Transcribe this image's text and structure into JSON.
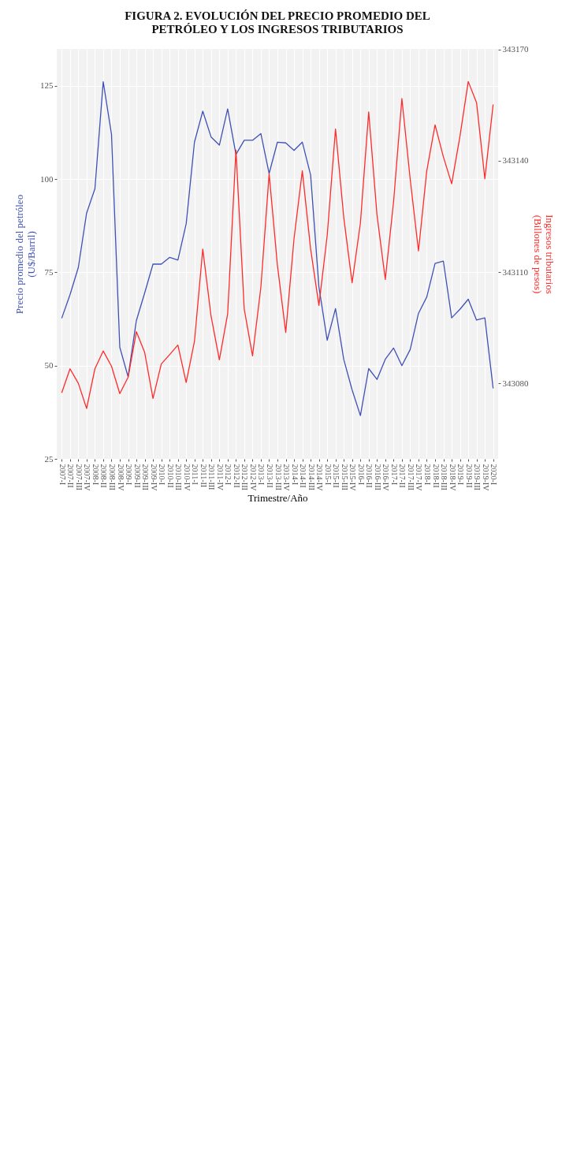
{
  "chart_data": {
    "type": "line",
    "title": "FIGURA 2. EVOLUCIÓN DEL PRECIO PROMEDIO DEL PETRÓLEO Y LOS INGRESOS TRIBUTARIOS",
    "xlabel": "Trimestre/Año",
    "ylabel": "Precio promedio del petróleo\n(U$/Barril)",
    "y2label": "Ingresos tributarios\n(Billones de pesos)",
    "categories": [
      "2007-I",
      "2007-II",
      "2007-III",
      "2007-IV",
      "2008-I",
      "2008-II",
      "2008-III",
      "2008-IV",
      "2009-I",
      "2009-II",
      "2009-III",
      "2009-IV",
      "2010-I",
      "2010-II",
      "2010-III",
      "2010-IV",
      "2011-I",
      "2011-II",
      "2011-III",
      "2011-IV",
      "2012-I",
      "2012-II",
      "2012-III",
      "2012-IV",
      "2013-I",
      "2013-II",
      "2013-III",
      "2013-IV",
      "2014-I",
      "2014-II",
      "2014-III",
      "2014-IV",
      "2015-I",
      "2015-II",
      "2015-III",
      "2015-IV",
      "2016-I",
      "2016-II",
      "2016-III",
      "2016-IV",
      "2017-I",
      "2017-II",
      "2017-III",
      "2017-IV",
      "2018-I",
      "2018-II",
      "2018-III",
      "2018-IV",
      "2019-I",
      "2019-II",
      "2019-III",
      "2019-IV",
      "2020-I"
    ],
    "series": [
      {
        "color": "#3f51b5",
        "values": [
          62.7,
          69.0,
          76.3,
          90.9,
          97.4,
          126.1,
          112.0,
          54.9,
          47.0,
          62.1,
          69.5,
          77.2,
          77.2,
          79.0,
          78.3,
          88.0,
          109.9,
          118.2,
          111.3,
          109.1,
          118.8,
          106.6,
          110.4,
          110.4,
          112.2,
          101.5,
          109.9,
          109.7,
          107.7,
          109.9,
          101.1,
          71.1,
          56.8,
          65.3,
          51.6,
          43.5,
          36.6,
          49.2,
          46.3,
          51.7,
          54.7,
          50.0,
          54.3,
          64.0,
          68.4,
          77.4,
          78.0,
          62.8,
          65.1,
          67.8,
          62.2,
          62.8,
          43.9
        ]
      },
      {
        "color": "#ff2a2a",
        "axis": "y2",
        "values": [
          343077.4,
          343083.9,
          343080.0,
          343073.2,
          343083.9,
          343088.7,
          343084.6,
          343077.2,
          343081.6,
          343093.9,
          343088.3,
          343075.9,
          343085.2,
          343087.7,
          343090.3,
          343080.2,
          343091.3,
          343116.2,
          343098.1,
          343086.3,
          343098.7,
          343142.9,
          343100.0,
          343087.4,
          343105.8,
          343136.5,
          343111.8,
          343093.7,
          343119.0,
          343137.3,
          343116.2,
          343101.0,
          343119.9,
          343148.6,
          343124.6,
          343107.1,
          343123.2,
          343153.2,
          343125.4,
          343108.0,
          343129.0,
          343156.8,
          343135.1,
          343115.7,
          343137.3,
          343149.7,
          343141.1,
          343133.8,
          343146.6,
          343161.4,
          343155.7,
          343135.2,
          343155.2
        ]
      }
    ],
    "ylim": [
      25,
      134.9
    ],
    "yticks": [
      25,
      50,
      75,
      100,
      125
    ],
    "y2lim": [
      343059.6,
      343170.2
    ],
    "y2ticks": [
      343080,
      343110,
      343140,
      343170
    ],
    "grid": true
  }
}
